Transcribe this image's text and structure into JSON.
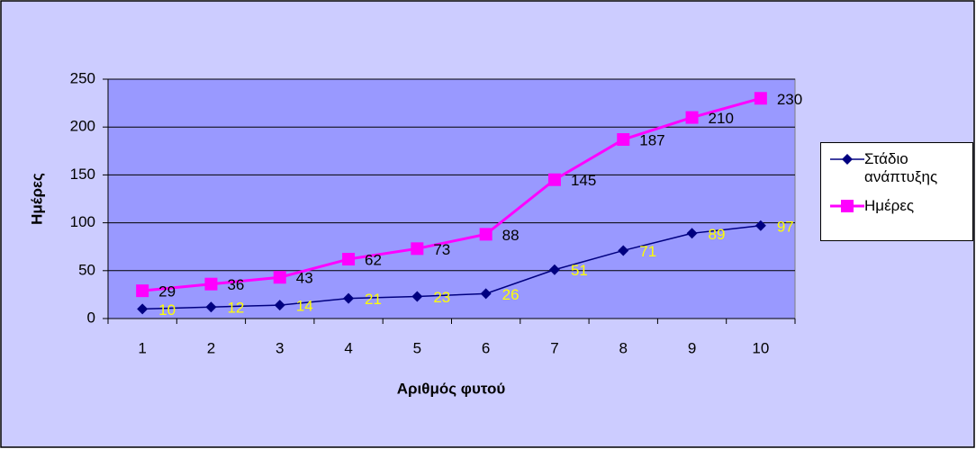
{
  "chart_data": {
    "type": "line",
    "x_label": "Αριθμός φυτού",
    "y_label": "Ημέρες",
    "categories": [
      1,
      2,
      3,
      4,
      5,
      6,
      7,
      8,
      9,
      10
    ],
    "series": [
      {
        "name": "Στάδιο ανάπτυξης",
        "color": "#000080",
        "marker": "diamond",
        "label_color": "#ffff00",
        "values": [
          10,
          12,
          14,
          21,
          23,
          26,
          51,
          71,
          89,
          97
        ]
      },
      {
        "name": "Ημέρες",
        "color": "#ff00ff",
        "marker": "square",
        "label_color": "#000000",
        "values": [
          29,
          36,
          43,
          62,
          73,
          88,
          145,
          187,
          210,
          230
        ]
      }
    ],
    "ylim": [
      0,
      250
    ],
    "yticks": [
      0,
      50,
      100,
      150,
      200,
      250
    ],
    "grid": true,
    "legend": "right"
  }
}
